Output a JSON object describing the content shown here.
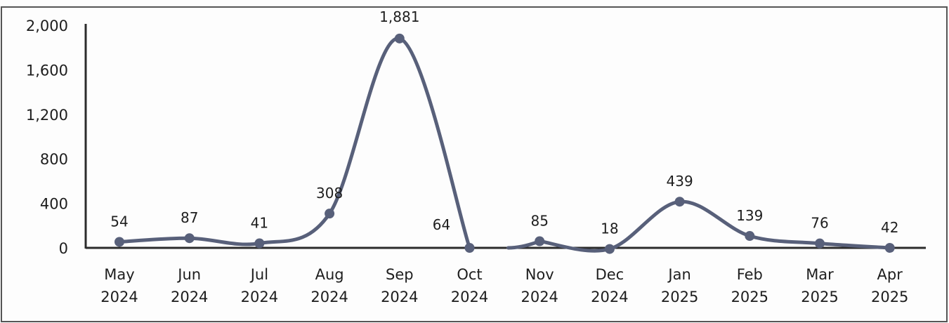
{
  "chart_data": {
    "type": "line",
    "smooth": true,
    "categories": [
      [
        "May",
        "2024"
      ],
      [
        "Jun",
        "2024"
      ],
      [
        "Jul",
        "2024"
      ],
      [
        "Aug",
        "2024"
      ],
      [
        "Sep",
        "2024"
      ],
      [
        "Oct",
        "2024"
      ],
      [
        "Nov",
        "2024"
      ],
      [
        "Dec",
        "2024"
      ],
      [
        "Jan",
        "2025"
      ],
      [
        "Feb",
        "2025"
      ],
      [
        "Mar",
        "2025"
      ],
      [
        "Apr",
        "2025"
      ]
    ],
    "series": [
      {
        "values": [
          54,
          87,
          41,
          308,
          1881,
          64,
          85,
          18,
          439,
          139,
          76,
          42
        ],
        "plotted_values": [
          54,
          87,
          41,
          308,
          1881,
          0,
          60,
          -10,
          415,
          107,
          40,
          0
        ],
        "labels": [
          "54",
          "87",
          "41",
          "308",
          "1,881",
          "64",
          "85",
          "18",
          "439",
          "139",
          "76",
          "42"
        ],
        "color": "#58607a"
      }
    ],
    "title": "",
    "xlabel": "",
    "ylabel": "",
    "ylim": [
      0,
      2000
    ],
    "yticks": [
      0,
      400,
      800,
      1200,
      1600,
      2000
    ],
    "ytick_labels": [
      "0",
      "400",
      "800",
      "1,200",
      "1,600",
      "2,000"
    ],
    "grid": false,
    "legend": "none",
    "gap_between_categories": [
      5,
      6
    ]
  },
  "colors": {
    "line": "#58607a",
    "axis": "#2b2b2b",
    "frame": "#555555",
    "text": "#1e1e1e"
  }
}
